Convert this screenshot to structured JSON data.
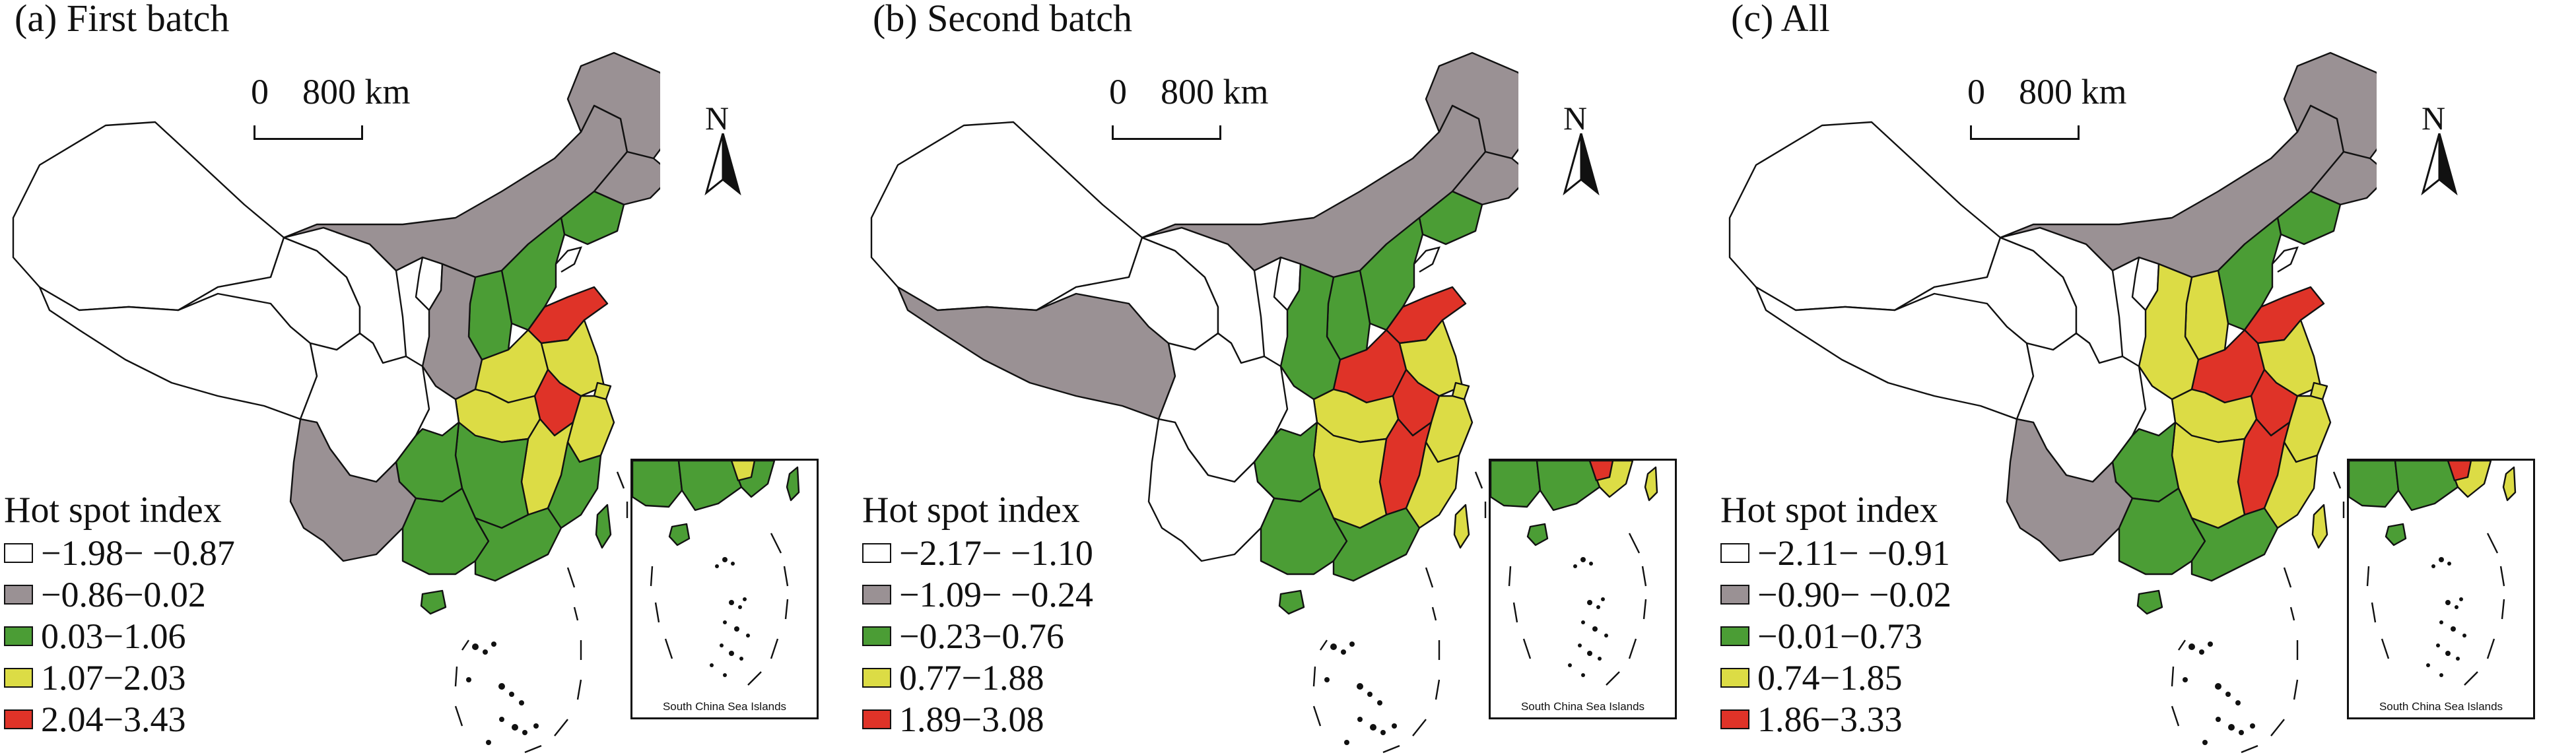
{
  "colors": {
    "white": "#ffffff",
    "gray": "#9a9194",
    "green": "#4b9d35",
    "yellow": "#dcdc45",
    "red": "#df3328"
  },
  "map_common": {
    "scale_zero": "0",
    "scale_distance": "800 km",
    "north_label": "N",
    "inset_label": "South China Sea Islands",
    "legend_title": "Hot spot index"
  },
  "panels": [
    {
      "title": "(a) First batch",
      "legend": [
        "−1.98− −0.87",
        "−0.86−0.02",
        "0.03−1.06",
        "1.07−2.03",
        "2.04−3.43"
      ],
      "classes": {
        "xinjiang": 0,
        "tibet": 0,
        "qinghai": 0,
        "gansu": 0,
        "sichuan": 0,
        "chongqing": 0,
        "ningxia": 0,
        "beijing": 0,
        "tianjin": 0,
        "yunnan": 1,
        "innermongolia": 1,
        "heilongjiang": 1,
        "jilin": 1,
        "shaanxi": 1,
        "liaoning": 2,
        "hebei": 2,
        "shanxi": 2,
        "guizhou": 2,
        "guangxi": 2,
        "guangdong": 2,
        "fujian": 2,
        "hainan": 2,
        "hunan": 2,
        "taiwan": 2,
        "shandong": 4,
        "henan": 3,
        "jiangsu": 3,
        "anhui": 4,
        "hubei": 3,
        "jiangxi": 3,
        "zhejiang": 3,
        "shanghai": 3
      }
    },
    {
      "title": "(b) Second batch",
      "legend": [
        "−2.17− −1.10",
        "−1.09− −0.24",
        "−0.23−0.76",
        "0.77−1.88",
        "1.89−3.08"
      ],
      "classes": {
        "xinjiang": 0,
        "qinghai": 0,
        "sichuan": 0,
        "chongqing": 0,
        "ningxia": 0,
        "beijing": 0,
        "tianjin": 0,
        "gansu": 0,
        "yunnan": 0,
        "tibet": 1,
        "innermongolia": 1,
        "heilongjiang": 1,
        "jilin": 1,
        "liaoning": 2,
        "hebei": 2,
        "shanxi": 2,
        "shaanxi": 2,
        "guizhou": 2,
        "guangxi": 2,
        "guangdong": 2,
        "hainan": 2,
        "shandong": 4,
        "henan": 4,
        "jiangsu": 3,
        "anhui": 4,
        "hubei": 3,
        "hunan": 3,
        "jiangxi": 4,
        "zhejiang": 3,
        "fujian": 3,
        "shanghai": 3,
        "taiwan": 3
      }
    },
    {
      "title": "(c) All",
      "legend": [
        "−2.11− −0.91",
        "−0.90− −0.02",
        "−0.01−0.73",
        "0.74−1.85",
        "1.86−3.33"
      ],
      "classes": {
        "xinjiang": 0,
        "tibet": 0,
        "qinghai": 0,
        "gansu": 0,
        "sichuan": 0,
        "chongqing": 0,
        "ningxia": 0,
        "beijing": 0,
        "tianjin": 0,
        "yunnan": 1,
        "innermongolia": 1,
        "heilongjiang": 1,
        "jilin": 1,
        "liaoning": 2,
        "hebei": 2,
        "guizhou": 2,
        "guangxi": 2,
        "guangdong": 2,
        "hainan": 2,
        "shandong": 4,
        "henan": 4,
        "shanxi": 3,
        "shaanxi": 3,
        "jiangsu": 3,
        "anhui": 4,
        "hubei": 3,
        "hunan": 3,
        "jiangxi": 4,
        "zhejiang": 3,
        "fujian": 3,
        "shanghai": 3,
        "taiwan": 3
      }
    }
  ]
}
